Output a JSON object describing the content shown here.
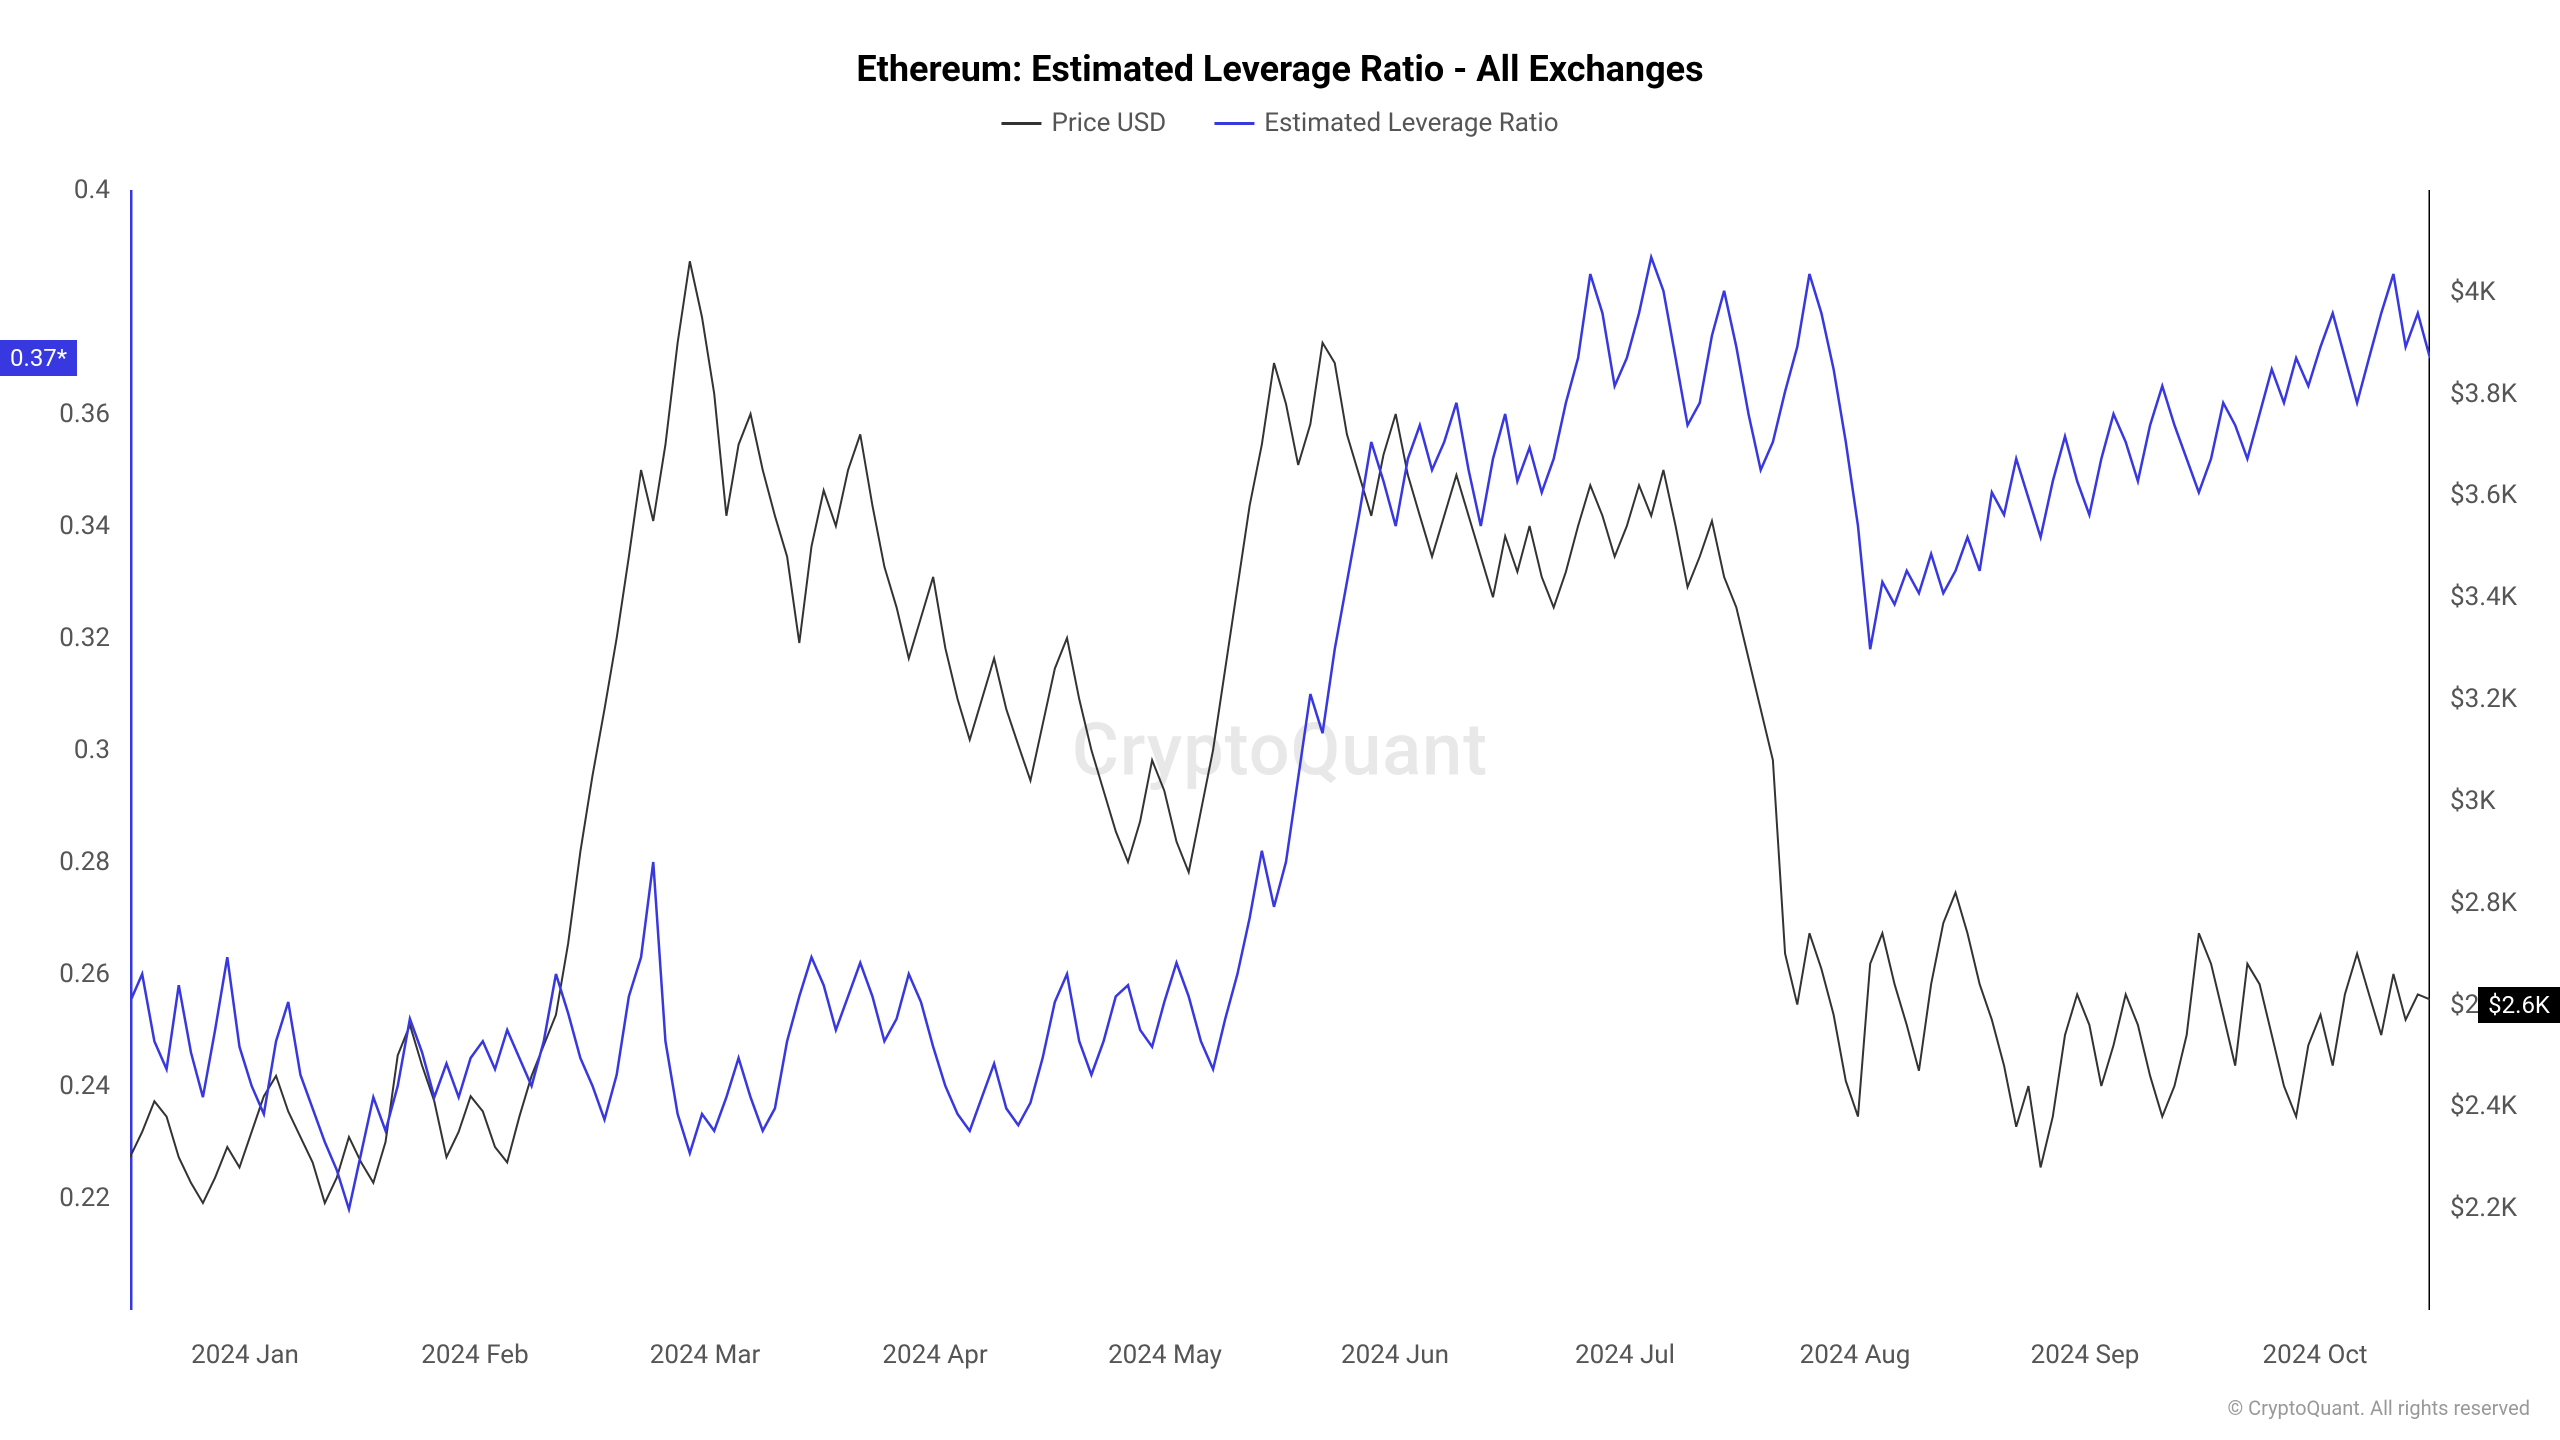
{
  "chart": {
    "type": "line",
    "title": "Ethereum: Estimated Leverage Ratio - All Exchanges",
    "title_fontsize": 36,
    "title_fontweight": 700,
    "background_color": "#ffffff",
    "watermark": "CryptoQuant",
    "watermark_color": "#e8e8e8",
    "copyright": "© CryptoQuant. All rights reserved",
    "legend": {
      "items": [
        {
          "label": "Price USD",
          "color": "#333333"
        },
        {
          "label": "Estimated Leverage Ratio",
          "color": "#3838e0"
        }
      ],
      "fontsize": 26
    },
    "left_axis": {
      "min": 0.2,
      "max": 0.4,
      "ticks": [
        0.22,
        0.24,
        0.26,
        0.28,
        0.3,
        0.32,
        0.34,
        0.36,
        0.4
      ],
      "tick_labels": [
        "0.22",
        "0.24",
        "0.26",
        "0.28",
        "0.3",
        "0.32",
        "0.34",
        "0.36",
        "0.4"
      ],
      "color": "#3838e0",
      "current_marker": {
        "value": 0.37,
        "label": "0.37*",
        "bg": "#3838e0"
      }
    },
    "right_axis": {
      "min": 2000,
      "max": 4200,
      "ticks": [
        2200,
        2400,
        2600,
        2800,
        3000,
        3200,
        3400,
        3600,
        3800,
        4000
      ],
      "tick_labels": [
        "$2.2K",
        "$2.4K",
        "$2.6K",
        "$2.8K",
        "$3K",
        "$3.2K",
        "$3.4K",
        "$3.6K",
        "$3.8K",
        "$4K"
      ],
      "color": "#000000",
      "current_marker": {
        "value": 2600,
        "label": "$2.6K",
        "bg": "#000000"
      }
    },
    "x_axis": {
      "ticks": [
        0.05,
        0.15,
        0.25,
        0.35,
        0.45,
        0.55,
        0.65,
        0.75,
        0.85,
        0.95
      ],
      "tick_labels": [
        "2024 Jan",
        "2024 Feb",
        "2024 Mar",
        "2024 Apr",
        "2024 May",
        "2024 Jun",
        "2024 Jul",
        "2024 Aug",
        "2024 Sep",
        "2024 Oct"
      ]
    },
    "series": {
      "leverage_ratio": {
        "color": "#3838e0",
        "stroke_width": 2.5,
        "axis": "left",
        "data": [
          0.255,
          0.26,
          0.248,
          0.243,
          0.258,
          0.246,
          0.238,
          0.25,
          0.263,
          0.247,
          0.24,
          0.235,
          0.248,
          0.255,
          0.242,
          0.236,
          0.23,
          0.225,
          0.218,
          0.228,
          0.238,
          0.232,
          0.24,
          0.252,
          0.246,
          0.238,
          0.244,
          0.238,
          0.245,
          0.248,
          0.243,
          0.25,
          0.245,
          0.24,
          0.248,
          0.26,
          0.253,
          0.245,
          0.24,
          0.234,
          0.242,
          0.256,
          0.263,
          0.28,
          0.248,
          0.235,
          0.228,
          0.235,
          0.232,
          0.238,
          0.245,
          0.238,
          0.232,
          0.236,
          0.248,
          0.256,
          0.263,
          0.258,
          0.25,
          0.256,
          0.262,
          0.256,
          0.248,
          0.252,
          0.26,
          0.255,
          0.247,
          0.24,
          0.235,
          0.232,
          0.238,
          0.244,
          0.236,
          0.233,
          0.237,
          0.245,
          0.255,
          0.26,
          0.248,
          0.242,
          0.248,
          0.256,
          0.258,
          0.25,
          0.247,
          0.255,
          0.262,
          0.256,
          0.248,
          0.243,
          0.252,
          0.26,
          0.27,
          0.282,
          0.272,
          0.28,
          0.295,
          0.31,
          0.303,
          0.318,
          0.33,
          0.342,
          0.355,
          0.348,
          0.34,
          0.352,
          0.358,
          0.35,
          0.355,
          0.362,
          0.35,
          0.34,
          0.352,
          0.36,
          0.348,
          0.354,
          0.346,
          0.352,
          0.362,
          0.37,
          0.385,
          0.378,
          0.365,
          0.37,
          0.378,
          0.388,
          0.382,
          0.37,
          0.358,
          0.362,
          0.374,
          0.382,
          0.372,
          0.36,
          0.35,
          0.355,
          0.364,
          0.372,
          0.385,
          0.378,
          0.368,
          0.355,
          0.34,
          0.318,
          0.33,
          0.326,
          0.332,
          0.328,
          0.335,
          0.328,
          0.332,
          0.338,
          0.332,
          0.346,
          0.342,
          0.352,
          0.345,
          0.338,
          0.348,
          0.356,
          0.348,
          0.342,
          0.352,
          0.36,
          0.355,
          0.348,
          0.358,
          0.365,
          0.358,
          0.352,
          0.346,
          0.352,
          0.362,
          0.358,
          0.352,
          0.36,
          0.368,
          0.362,
          0.37,
          0.365,
          0.372,
          0.378,
          0.37,
          0.362,
          0.37,
          0.378,
          0.385,
          0.372,
          0.378,
          0.37
        ]
      },
      "price_usd": {
        "color": "#333333",
        "stroke_width": 2,
        "axis": "right",
        "data": [
          2300,
          2350,
          2410,
          2380,
          2300,
          2250,
          2210,
          2260,
          2320,
          2280,
          2350,
          2420,
          2460,
          2390,
          2340,
          2290,
          2210,
          2260,
          2340,
          2290,
          2250,
          2330,
          2500,
          2560,
          2480,
          2410,
          2300,
          2350,
          2420,
          2390,
          2320,
          2290,
          2380,
          2460,
          2520,
          2580,
          2720,
          2900,
          3050,
          3180,
          3320,
          3480,
          3650,
          3550,
          3700,
          3900,
          4060,
          3950,
          3800,
          3560,
          3700,
          3760,
          3650,
          3560,
          3480,
          3310,
          3500,
          3610,
          3540,
          3650,
          3720,
          3580,
          3460,
          3380,
          3280,
          3360,
          3440,
          3300,
          3200,
          3120,
          3200,
          3280,
          3180,
          3110,
          3040,
          3150,
          3260,
          3320,
          3200,
          3100,
          3020,
          2940,
          2880,
          2960,
          3080,
          3020,
          2920,
          2860,
          2980,
          3100,
          3260,
          3420,
          3580,
          3700,
          3860,
          3780,
          3660,
          3740,
          3900,
          3860,
          3720,
          3640,
          3560,
          3680,
          3760,
          3640,
          3560,
          3480,
          3560,
          3640,
          3560,
          3480,
          3400,
          3520,
          3450,
          3540,
          3440,
          3380,
          3450,
          3540,
          3620,
          3560,
          3480,
          3540,
          3620,
          3560,
          3650,
          3540,
          3420,
          3480,
          3550,
          3440,
          3380,
          3280,
          3180,
          3080,
          2700,
          2600,
          2740,
          2670,
          2580,
          2450,
          2380,
          2680,
          2740,
          2640,
          2560,
          2470,
          2640,
          2760,
          2820,
          2740,
          2640,
          2570,
          2480,
          2360,
          2440,
          2280,
          2380,
          2540,
          2620,
          2560,
          2440,
          2520,
          2620,
          2560,
          2460,
          2380,
          2440,
          2540,
          2740,
          2680,
          2580,
          2480,
          2680,
          2640,
          2540,
          2440,
          2380,
          2520,
          2580,
          2480,
          2620,
          2700,
          2620,
          2540,
          2660,
          2570,
          2620,
          2610
        ]
      }
    }
  }
}
